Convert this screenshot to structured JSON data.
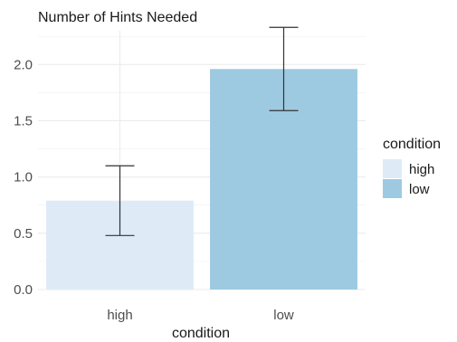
{
  "chart_data": {
    "type": "bar",
    "title": "Number of Hints Needed",
    "xlabel": "condition",
    "ylabel": "",
    "categories": [
      "high",
      "low"
    ],
    "values": [
      0.79,
      1.96
    ],
    "error_low": [
      0.48,
      1.59
    ],
    "error_high": [
      1.1,
      2.33
    ],
    "ylim": [
      0,
      2.3
    ],
    "yticks": [
      "0.0",
      "0.5",
      "1.0",
      "1.5",
      "2.0"
    ],
    "grid": true,
    "legend": {
      "title": "condition",
      "position": "right",
      "entries": [
        "high",
        "low"
      ]
    },
    "colors": [
      "#deebf7",
      "#9ecae1"
    ]
  }
}
